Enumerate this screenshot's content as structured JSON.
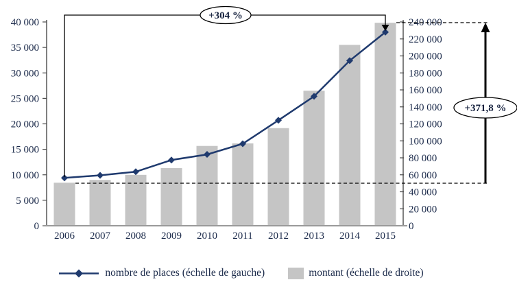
{
  "chart_data": {
    "type": "bar",
    "subtype": "combo-dual-axis-bar-line",
    "title": "",
    "categories": [
      "2006",
      "2007",
      "2008",
      "2009",
      "2010",
      "2011",
      "2012",
      "2013",
      "2014",
      "2015"
    ],
    "series": [
      {
        "name": "nombre de places (échelle de gauche)",
        "type": "line",
        "axis": "left",
        "marker": "diamond",
        "color": "#1f3a6e",
        "values": [
          9400,
          9900,
          10600,
          12900,
          14000,
          16100,
          20700,
          25400,
          32400,
          38000
        ]
      },
      {
        "name": "montant (échelle de droite)",
        "type": "bar",
        "axis": "right",
        "color": "#c5c5c5",
        "values": [
          50700,
          54000,
          60000,
          68000,
          94000,
          97000,
          115000,
          159000,
          213000,
          239000
        ]
      }
    ],
    "y_left": {
      "min": 0,
      "max": 40000,
      "step": 5000,
      "labels": [
        "0",
        "5 000",
        "10 000",
        "15 000",
        "20 000",
        "25 000",
        "30 000",
        "35 000",
        "40 000"
      ]
    },
    "y_right": {
      "min": 0,
      "max": 240000,
      "step": 20000,
      "labels": [
        "0",
        "20 000",
        "40 000",
        "60 000",
        "80 000",
        "100 000",
        "120 000",
        "140 000",
        "160 000",
        "180 000",
        "200 000",
        "220 000",
        "240 000"
      ]
    },
    "grid": "off",
    "legend_position": "bottom",
    "annotations": {
      "line_growth": {
        "text": "+304 %",
        "desc": "bracket from 2006 line point to 2015 line point, arrow down at 2015"
      },
      "bar_growth": {
        "text": "+371,8 %",
        "desc": "vertical up arrow between dashed guides at 2006 montant level (~50 700) and 2015 montant level (~239 000)"
      }
    },
    "legend": {
      "items": [
        {
          "label": "nombre de places (échelle de gauche)",
          "swatch": "line-diamond"
        },
        {
          "label": "montant (échelle de droite)",
          "swatch": "bar"
        }
      ]
    }
  }
}
